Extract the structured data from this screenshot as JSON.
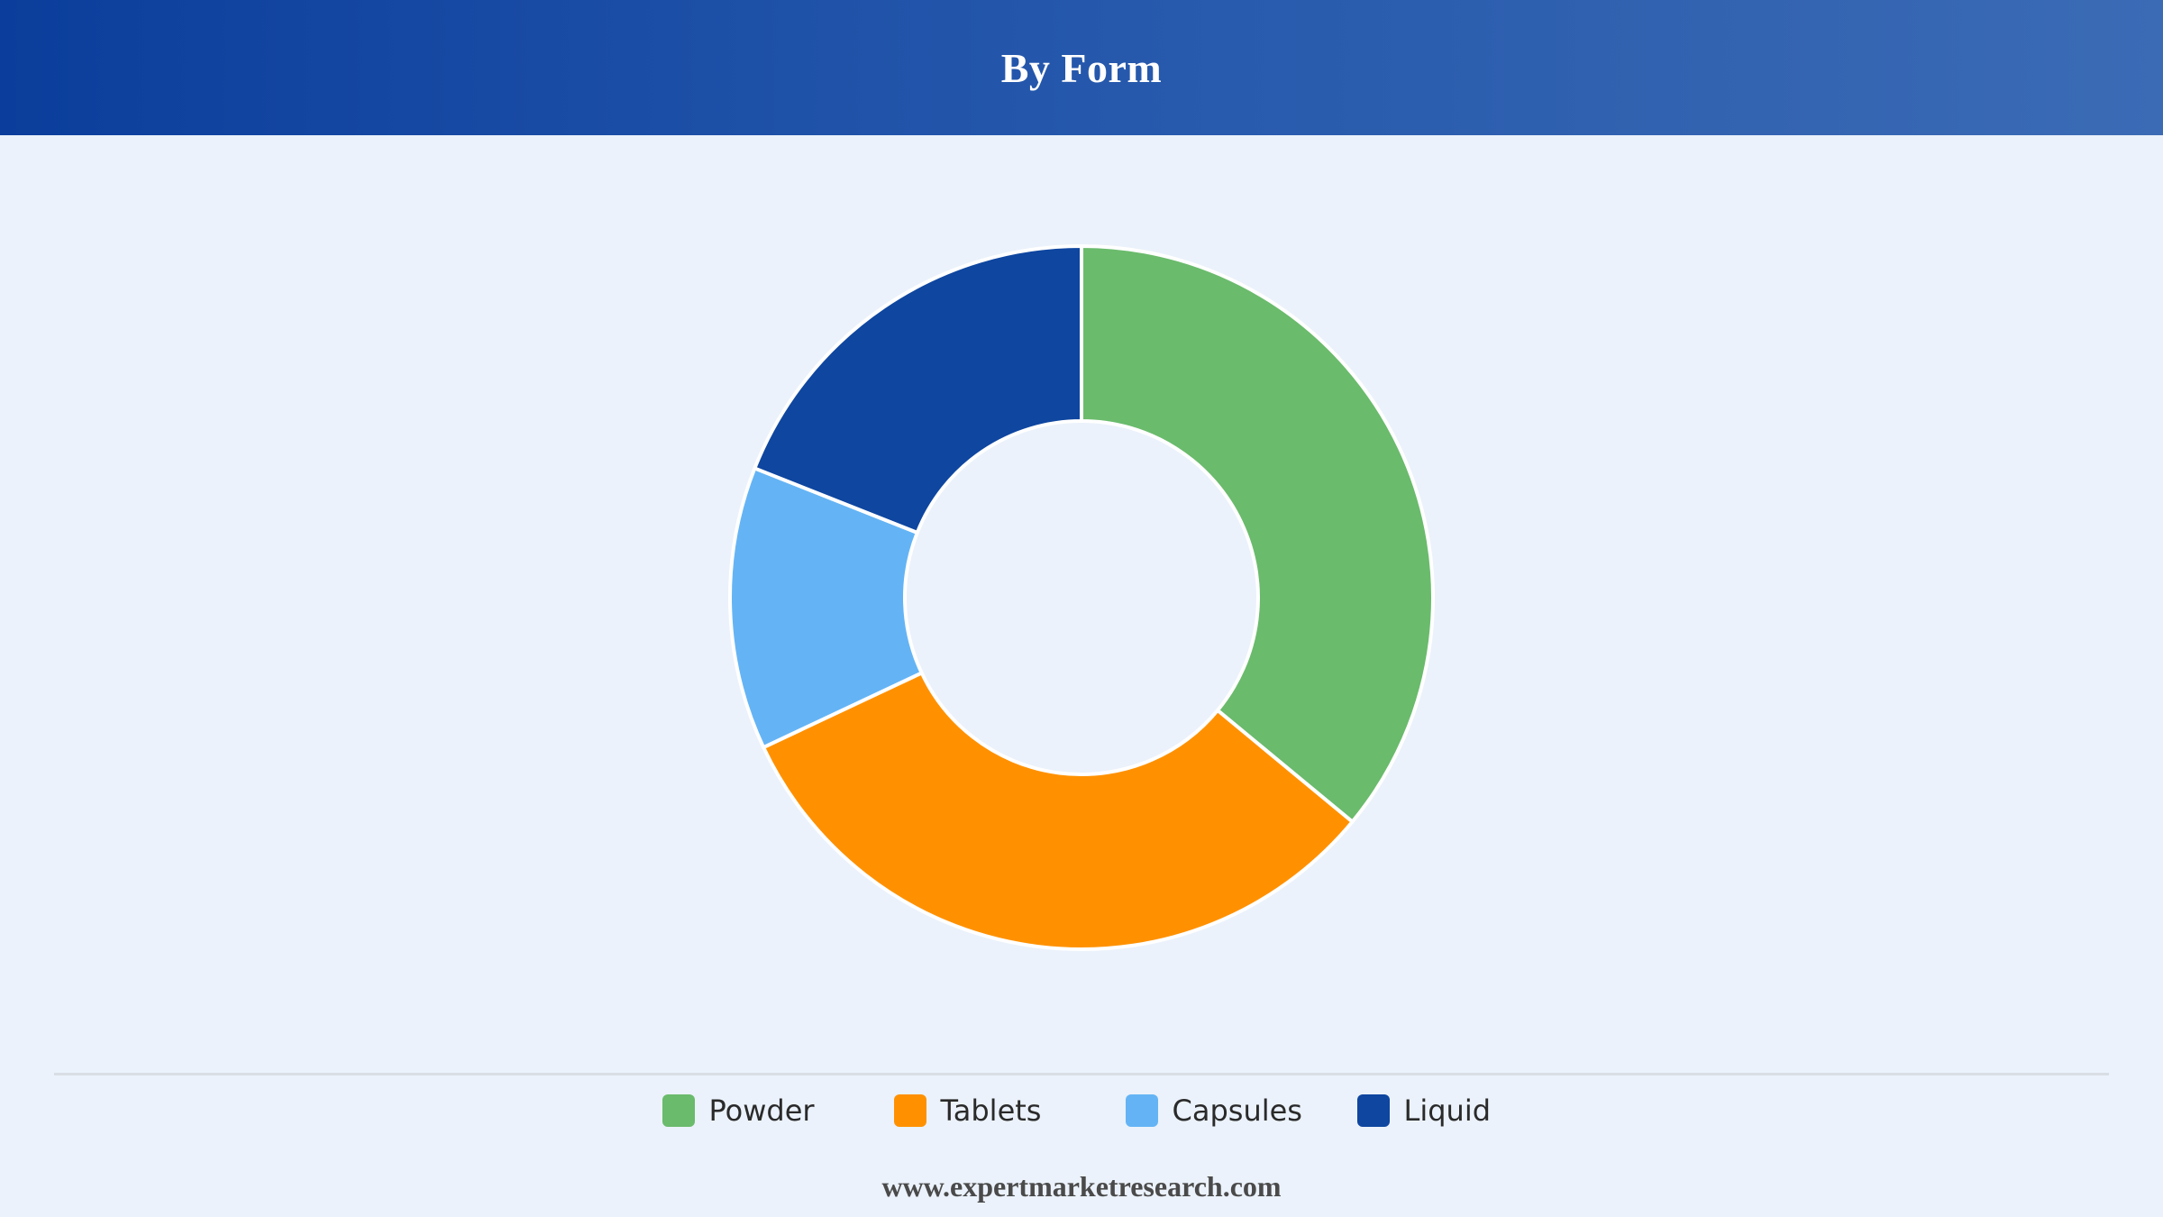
{
  "header": {
    "title": "By Form"
  },
  "chart_data": {
    "type": "pie",
    "variant": "donut",
    "title": "By Form",
    "categories": [
      "Powder",
      "Tablets",
      "Capsules",
      "Liquid"
    ],
    "values": [
      36,
      32,
      13,
      19
    ],
    "colors": [
      "#6abb6c",
      "#ff9100",
      "#64b4f5",
      "#0e46a0"
    ],
    "legend_position": "bottom",
    "start": "top",
    "direction": "clockwise"
  },
  "legend": {
    "items": [
      {
        "label": "Powder",
        "color": "#6abb6c"
      },
      {
        "label": "Tablets",
        "color": "#ff9100"
      },
      {
        "label": "Capsules",
        "color": "#64b4f5"
      },
      {
        "label": "Liquid",
        "color": "#0e46a0"
      }
    ]
  },
  "footer": {
    "source": "www.expertmarketresearch.com"
  }
}
